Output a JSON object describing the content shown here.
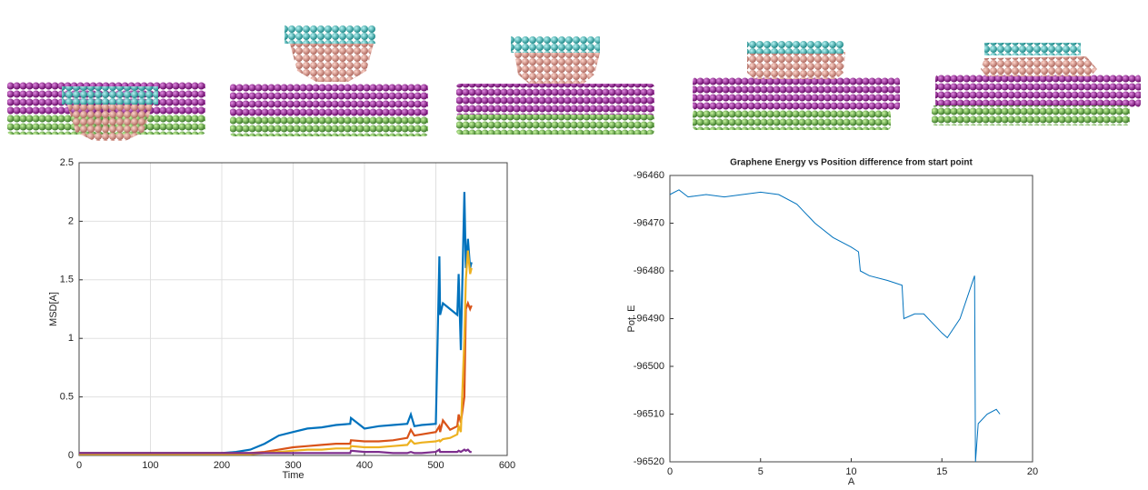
{
  "chart_data": [
    {
      "type": "line",
      "x_label": "Time",
      "y_label": "MSD[A]",
      "x": [
        0,
        20,
        40,
        60,
        80,
        100,
        120,
        140,
        160,
        180,
        200,
        220,
        240,
        260,
        280,
        300,
        320,
        340,
        360,
        380,
        381,
        400,
        420,
        440,
        460,
        465,
        470,
        480,
        500,
        505,
        506,
        510,
        520,
        530,
        532,
        535,
        540,
        542,
        545,
        548,
        550
      ],
      "series": [
        {
          "color": "#0072bd",
          "values": [
            0.02,
            0.02,
            0.02,
            0.02,
            0.02,
            0.02,
            0.02,
            0.02,
            0.02,
            0.02,
            0.02,
            0.03,
            0.05,
            0.1,
            0.17,
            0.2,
            0.23,
            0.24,
            0.26,
            0.27,
            0.32,
            0.23,
            0.25,
            0.26,
            0.27,
            0.35,
            0.25,
            0.26,
            0.27,
            1.7,
            1.2,
            1.3,
            1.25,
            1.2,
            1.55,
            0.9,
            2.25,
            1.6,
            1.85,
            1.6,
            1.65
          ]
        },
        {
          "color": "#d95319",
          "values": [
            0.02,
            0.02,
            0.02,
            0.02,
            0.02,
            0.02,
            0.02,
            0.02,
            0.02,
            0.02,
            0.02,
            0.02,
            0.02,
            0.03,
            0.05,
            0.07,
            0.08,
            0.09,
            0.1,
            0.1,
            0.13,
            0.12,
            0.12,
            0.13,
            0.15,
            0.22,
            0.17,
            0.18,
            0.2,
            0.25,
            0.2,
            0.3,
            0.22,
            0.25,
            0.35,
            0.28,
            0.5,
            1.25,
            1.3,
            1.25,
            1.28
          ]
        },
        {
          "color": "#edb120",
          "values": [
            0.01,
            0.01,
            0.01,
            0.01,
            0.01,
            0.01,
            0.01,
            0.01,
            0.01,
            0.01,
            0.01,
            0.01,
            0.01,
            0.02,
            0.03,
            0.04,
            0.05,
            0.05,
            0.06,
            0.06,
            0.08,
            0.07,
            0.07,
            0.08,
            0.09,
            0.13,
            0.1,
            0.11,
            0.12,
            0.13,
            0.12,
            0.14,
            0.15,
            0.18,
            0.25,
            0.2,
            1.0,
            1.5,
            1.75,
            1.55,
            1.6
          ]
        },
        {
          "color": "#7e2f8e",
          "values": [
            0.02,
            0.02,
            0.02,
            0.02,
            0.02,
            0.02,
            0.02,
            0.02,
            0.02,
            0.02,
            0.02,
            0.02,
            0.02,
            0.02,
            0.02,
            0.02,
            0.02,
            0.02,
            0.02,
            0.02,
            0.04,
            0.03,
            0.03,
            0.02,
            0.02,
            0.03,
            0.02,
            0.02,
            0.03,
            0.05,
            0.03,
            0.03,
            0.03,
            0.03,
            0.04,
            0.03,
            0.05,
            0.04,
            0.05,
            0.03,
            0.03
          ]
        }
      ],
      "xlim": [
        0,
        600
      ],
      "ylim": [
        0,
        2.5
      ],
      "xticks": [
        0,
        100,
        200,
        300,
        400,
        500,
        600
      ],
      "yticks": [
        0,
        0.5,
        1,
        1.5,
        2,
        2.5
      ],
      "grid": true
    },
    {
      "type": "line",
      "title": "Graphene Energy vs Position difference from start point",
      "x_label": "A",
      "y_label": "Pot. E",
      "x": [
        0,
        0.5,
        1,
        2,
        3,
        4,
        5,
        6,
        7,
        8,
        9,
        10,
        10.4,
        10.5,
        11,
        12,
        12.8,
        12.9,
        13.5,
        14,
        14.5,
        15,
        15.3,
        16,
        16.8,
        16.85,
        17,
        17.5,
        18,
        18.2
      ],
      "series": [
        {
          "color": "#0072bd",
          "values": [
            -96464,
            -96463,
            -96464.5,
            -96464,
            -96464.5,
            -96464,
            -96463.5,
            -96464,
            -96466,
            -96470,
            -96473,
            -96475,
            -96476,
            -96480,
            -96481,
            -96482,
            -96483,
            -96490,
            -96489,
            -96489,
            -96491,
            -96493,
            -96494,
            -96490,
            -96481,
            -96520,
            -96512,
            -96510,
            -96509,
            -96510
          ]
        }
      ],
      "xlim": [
        0,
        20
      ],
      "ylim": [
        -96520,
        -96460
      ],
      "xticks": [
        0,
        5,
        10,
        15,
        20
      ],
      "yticks": [
        -96520,
        -96510,
        -96500,
        -96490,
        -96480,
        -96470,
        -96460
      ],
      "grid": false
    }
  ]
}
